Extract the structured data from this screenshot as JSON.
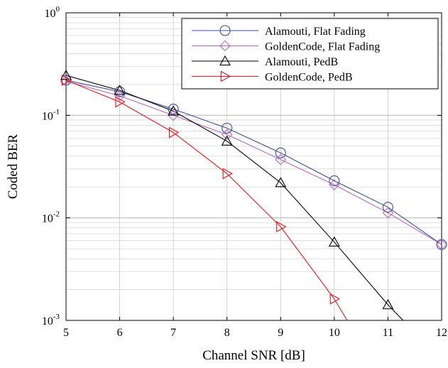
{
  "chart_data": {
    "type": "line",
    "xlabel": "Channel SNR [dB]",
    "ylabel": "Coded BER",
    "xlim": [
      5,
      12
    ],
    "ylim": [
      0.001,
      1
    ],
    "yscale": "log",
    "grid": true,
    "legend_position": "top-right",
    "x_ticks": [
      "5",
      "6",
      "7",
      "8",
      "9",
      "10",
      "11",
      "12"
    ],
    "y_ticks": [
      {
        "base": "10",
        "exp": "0"
      },
      {
        "base": "10",
        "exp": "-1"
      },
      {
        "base": "10",
        "exp": "-2"
      },
      {
        "base": "10",
        "exp": "-3"
      }
    ],
    "series": [
      {
        "name": "Alamouti, Flat Fading",
        "color": "#3c4fa0",
        "marker": "circle",
        "points": [
          [
            5,
            0.22
          ],
          [
            6,
            0.17
          ],
          [
            7,
            0.115
          ],
          [
            8,
            0.075
          ],
          [
            9,
            0.043
          ],
          [
            10,
            0.023
          ],
          [
            11,
            0.0127
          ],
          [
            12,
            0.0055
          ]
        ]
      },
      {
        "name": "GoldenCode, Flat Fading",
        "color": "#b768b7",
        "marker": "diamond",
        "points": [
          [
            5,
            0.215
          ],
          [
            6,
            0.155
          ],
          [
            7,
            0.1
          ],
          [
            8,
            0.065
          ],
          [
            9,
            0.037
          ],
          [
            10,
            0.021
          ],
          [
            11,
            0.0112
          ],
          [
            12,
            0.0055
          ]
        ]
      },
      {
        "name": "Alamouti, PedB",
        "color": "#000000",
        "marker": "triangle-up",
        "points": [
          [
            5,
            0.245
          ],
          [
            6,
            0.175
          ],
          [
            7,
            0.11
          ],
          [
            8,
            0.056
          ],
          [
            9,
            0.022
          ],
          [
            10,
            0.0058
          ],
          [
            11,
            0.00142
          ],
          [
            11.3,
            0.00098
          ]
        ]
      },
      {
        "name": "GoldenCode, PedB",
        "color": "#e8161c",
        "marker": "triangle-right",
        "points": [
          [
            5,
            0.22
          ],
          [
            6,
            0.135
          ],
          [
            7,
            0.068
          ],
          [
            8,
            0.027
          ],
          [
            9,
            0.0082
          ],
          [
            10,
            0.00162
          ],
          [
            10.25,
            0.00098
          ]
        ]
      }
    ]
  }
}
